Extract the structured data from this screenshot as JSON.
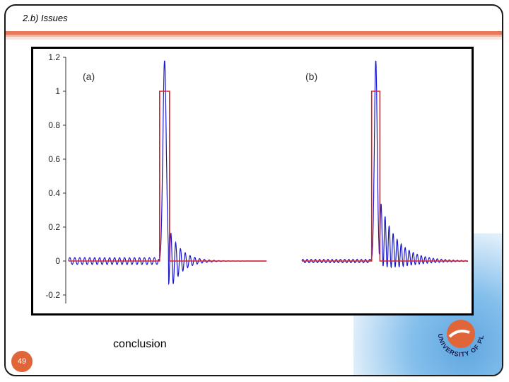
{
  "header": {
    "title": "2.b) Issues"
  },
  "footer": {
    "conclusion_label": "conclusion",
    "page_number": "49"
  },
  "colors": {
    "accent": "#e0663a",
    "signal": "#1a1acc",
    "reference": "#e0202a"
  },
  "logo": {
    "text": "UNIVERSITY OF PLYMOUTH"
  },
  "chart_data": [
    {
      "type": "line",
      "panel_label": "(a)",
      "ylim": [
        -0.25,
        1.2
      ],
      "yticks": [
        -0.2,
        0,
        0.2,
        0.4,
        0.6,
        0.8,
        1,
        1.2
      ],
      "ytick_labels": [
        "-0.2",
        "0",
        "0.2",
        "0.4",
        "0.6",
        "0.8",
        "1",
        "1.2"
      ],
      "xlim": [
        0,
        1
      ],
      "grid": false,
      "series": [
        {
          "role": "reference",
          "x": [
            0.0,
            0.46,
            0.46,
            0.51,
            0.51,
            1.0
          ],
          "y": [
            0,
            0,
            1,
            1,
            0,
            0
          ]
        },
        {
          "role": "signal",
          "x_center": 0.485,
          "peak": 1.18,
          "ringing_amplitude": 0.2,
          "ringing_decay": 0.06,
          "pre_ripple": 0.02
        }
      ]
    },
    {
      "type": "line",
      "panel_label": "(b)",
      "ylim": [
        -0.25,
        1.2
      ],
      "xlim": [
        0,
        1
      ],
      "grid": false,
      "series": [
        {
          "role": "reference",
          "x": [
            0.0,
            0.42,
            0.42,
            0.47,
            0.47,
            1.0
          ],
          "y": [
            0,
            0,
            1,
            1,
            0,
            0
          ]
        },
        {
          "role": "signal",
          "x_center": 0.445,
          "peak": 1.18,
          "ringing_amplitude": 0.2,
          "ringing_decay": 0.12,
          "pre_ripple": 0.01
        }
      ]
    }
  ]
}
